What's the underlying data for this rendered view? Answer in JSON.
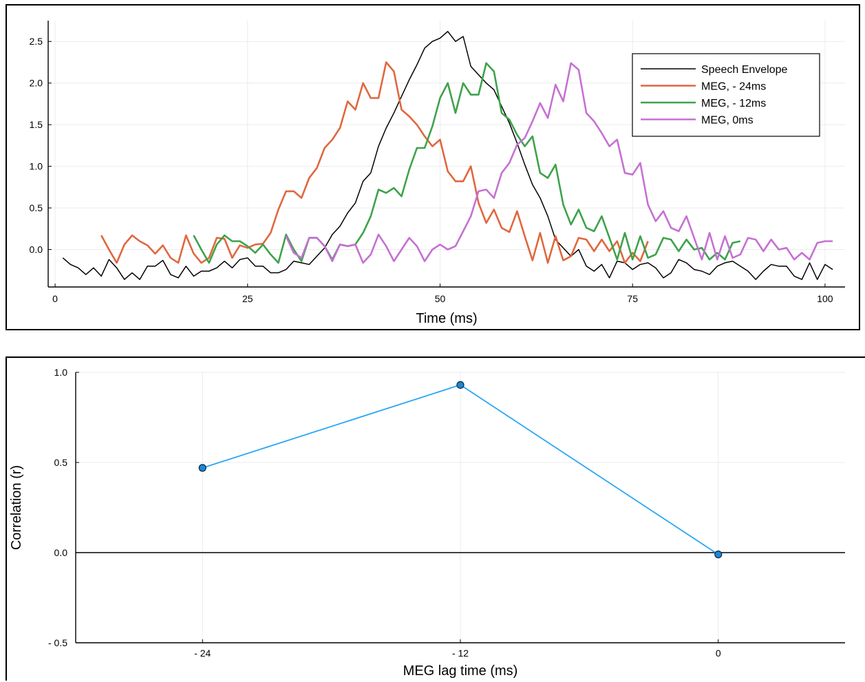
{
  "chart_data": [
    {
      "type": "line",
      "title": "",
      "xlabel": "Time (ms)",
      "ylabel": "",
      "xlim": [
        -0.9,
        102.6
      ],
      "ylim": [
        -0.45,
        2.75
      ],
      "xticks": [
        0,
        25,
        50,
        75,
        100
      ],
      "xtick_labels": [
        "0",
        "25",
        "50",
        "75",
        "100"
      ],
      "yticks": [
        0.0,
        0.5,
        1.0,
        1.5,
        2.0,
        2.5
      ],
      "ytick_labels": [
        "0.0",
        "0.5",
        "1.0",
        "1.5",
        "2.0",
        "2.5"
      ],
      "grid": true,
      "legend_position": "top-right",
      "series": [
        {
          "name": "Speech Envelope",
          "color": "#000000",
          "x": [
            1,
            2,
            3,
            4,
            5,
            6,
            7,
            8,
            9,
            10,
            11,
            12,
            13,
            14,
            15,
            16,
            17,
            18,
            19,
            20,
            21,
            22,
            23,
            24,
            25,
            26,
            27,
            28,
            29,
            30,
            31,
            32,
            33,
            34,
            35,
            36,
            37,
            38,
            39,
            40,
            41,
            42,
            43,
            44,
            45,
            46,
            47,
            48,
            49,
            50,
            51,
            52,
            53,
            54,
            55,
            56,
            57,
            58,
            59,
            60,
            61,
            62,
            63,
            64,
            65,
            66,
            67,
            68,
            69,
            70,
            71,
            72,
            73,
            74,
            75,
            76,
            77,
            78,
            79,
            80,
            81,
            82,
            83,
            84,
            85,
            86,
            87,
            88,
            89,
            90,
            91,
            92,
            93,
            94,
            95,
            96,
            97,
            98,
            99,
            100,
            101
          ],
          "y": [
            -0.1,
            -0.18,
            -0.22,
            -0.3,
            -0.22,
            -0.32,
            -0.12,
            -0.22,
            -0.36,
            -0.28,
            -0.36,
            -0.2,
            -0.2,
            -0.13,
            -0.3,
            -0.34,
            -0.2,
            -0.32,
            -0.26,
            -0.26,
            -0.22,
            -0.14,
            -0.22,
            -0.12,
            -0.1,
            -0.2,
            -0.2,
            -0.28,
            -0.28,
            -0.24,
            -0.14,
            -0.16,
            -0.18,
            -0.08,
            0.02,
            0.18,
            0.28,
            0.44,
            0.56,
            0.82,
            0.92,
            1.24,
            1.46,
            1.64,
            1.84,
            2.04,
            2.22,
            2.42,
            2.5,
            2.54,
            2.62,
            2.5,
            2.56,
            2.2,
            2.1,
            2.0,
            1.92,
            1.72,
            1.52,
            1.28,
            1.02,
            0.78,
            0.62,
            0.4,
            0.12,
            0.02,
            -0.08,
            0.0,
            -0.2,
            -0.26,
            -0.18,
            -0.34,
            -0.14,
            -0.16,
            -0.24,
            -0.18,
            -0.16,
            -0.22,
            -0.34,
            -0.28,
            -0.12,
            -0.16,
            -0.24,
            -0.26,
            -0.3,
            -0.2,
            -0.16,
            -0.14,
            -0.2,
            -0.26,
            -0.36,
            -0.26,
            -0.18,
            -0.2,
            -0.2,
            -0.32,
            -0.36,
            -0.16,
            -0.36,
            -0.18,
            -0.24
          ]
        },
        {
          "name": "MEG, - 24ms",
          "color": "#e0673f",
          "x": [
            6,
            7,
            8,
            9,
            10,
            11,
            12,
            13,
            14,
            15,
            16,
            17,
            18,
            19,
            20,
            21,
            22,
            23,
            24,
            25,
            26,
            27,
            28,
            29,
            30,
            31,
            32,
            33,
            34,
            35,
            36,
            37,
            38,
            39,
            40,
            41,
            42,
            43,
            44,
            45,
            46,
            47,
            48,
            49,
            50,
            51,
            52,
            53,
            54,
            55,
            56,
            57,
            58,
            59,
            60,
            61,
            62,
            63,
            64,
            65,
            66,
            67,
            68,
            69,
            70,
            71,
            72,
            73,
            74,
            75,
            76,
            77
          ],
          "y": [
            0.17,
            0.0,
            -0.16,
            0.06,
            0.17,
            0.1,
            0.05,
            -0.05,
            0.05,
            -0.1,
            -0.16,
            0.17,
            -0.05,
            -0.16,
            -0.1,
            0.14,
            0.13,
            -0.1,
            0.05,
            0.02,
            0.06,
            0.07,
            0.2,
            0.48,
            0.7,
            0.7,
            0.62,
            0.86,
            0.98,
            1.22,
            1.32,
            1.46,
            1.78,
            1.68,
            2.0,
            1.82,
            1.82,
            2.25,
            2.14,
            1.68,
            1.6,
            1.5,
            1.36,
            1.24,
            1.32,
            0.94,
            0.82,
            0.82,
            1.0,
            0.56,
            0.32,
            0.48,
            0.26,
            0.21,
            0.46,
            0.16,
            -0.13,
            0.2,
            -0.16,
            0.16,
            -0.13,
            -0.08,
            0.14,
            0.12,
            -0.02,
            0.12,
            -0.02,
            0.1,
            -0.16,
            -0.04,
            -0.14,
            0.1
          ]
        },
        {
          "name": "MEG, - 12ms",
          "color": "#3da24a",
          "x": [
            18,
            19,
            20,
            21,
            22,
            23,
            24,
            25,
            26,
            27,
            28,
            29,
            30,
            31,
            32,
            33,
            34,
            35,
            36,
            37,
            38,
            39,
            40,
            41,
            42,
            43,
            44,
            45,
            46,
            47,
            48,
            49,
            50,
            51,
            52,
            53,
            54,
            55,
            56,
            57,
            58,
            59,
            60,
            61,
            62,
            63,
            64,
            65,
            66,
            67,
            68,
            69,
            70,
            71,
            72,
            73,
            74,
            75,
            76,
            77,
            78,
            79,
            80,
            81,
            82,
            83,
            84,
            85,
            86,
            87,
            88,
            89
          ],
          "y": [
            0.17,
            0.0,
            -0.16,
            0.06,
            0.17,
            0.1,
            0.1,
            0.04,
            -0.04,
            0.06,
            -0.06,
            -0.16,
            0.18,
            0.0,
            -0.14,
            0.14,
            0.14,
            0.04,
            -0.12,
            0.06,
            0.04,
            0.06,
            0.2,
            0.4,
            0.72,
            0.68,
            0.74,
            0.64,
            0.96,
            1.22,
            1.22,
            1.48,
            1.82,
            2.0,
            1.64,
            2.0,
            1.86,
            1.86,
            2.24,
            2.14,
            1.64,
            1.56,
            1.38,
            1.24,
            1.36,
            0.92,
            0.86,
            1.02,
            0.54,
            0.3,
            0.48,
            0.26,
            0.22,
            0.4,
            0.14,
            -0.12,
            0.2,
            -0.12,
            0.16,
            -0.1,
            -0.06,
            0.14,
            0.12,
            -0.02,
            0.12,
            0.0,
            0.02,
            -0.12,
            -0.04,
            -0.12,
            0.08,
            0.1
          ]
        },
        {
          "name": "MEG, 0ms",
          "color": "#c670d3",
          "x": [
            30,
            31,
            32,
            33,
            34,
            35,
            36,
            37,
            38,
            39,
            40,
            41,
            42,
            43,
            44,
            45,
            46,
            47,
            48,
            49,
            50,
            51,
            52,
            53,
            54,
            55,
            56,
            57,
            58,
            59,
            60,
            61,
            62,
            63,
            64,
            65,
            66,
            67,
            68,
            69,
            70,
            71,
            72,
            73,
            74,
            75,
            76,
            77,
            78,
            79,
            80,
            81,
            82,
            83,
            84,
            85,
            86,
            87,
            88,
            89,
            90,
            91,
            92,
            93,
            94,
            95,
            96,
            97,
            98,
            99,
            100,
            101
          ],
          "y": [
            0.16,
            -0.04,
            -0.1,
            0.14,
            0.14,
            0.04,
            -0.14,
            0.06,
            0.04,
            0.06,
            -0.16,
            -0.06,
            0.18,
            0.04,
            -0.14,
            0.0,
            0.14,
            0.04,
            -0.14,
            0.0,
            0.06,
            0.0,
            0.04,
            0.22,
            0.4,
            0.7,
            0.72,
            0.62,
            0.92,
            1.04,
            1.26,
            1.34,
            1.54,
            1.76,
            1.58,
            1.98,
            1.78,
            2.24,
            2.16,
            1.64,
            1.54,
            1.4,
            1.24,
            1.32,
            0.92,
            0.9,
            1.04,
            0.54,
            0.34,
            0.46,
            0.26,
            0.22,
            0.4,
            0.14,
            -0.12,
            0.2,
            -0.12,
            0.16,
            -0.1,
            -0.06,
            0.14,
            0.12,
            -0.02,
            0.12,
            0.0,
            0.02,
            -0.12,
            -0.04,
            -0.12,
            0.08,
            0.1,
            0.1
          ]
        }
      ]
    },
    {
      "type": "line",
      "title": "",
      "xlabel": "MEG lag time (ms)",
      "ylabel": "Correlation (r)",
      "xlim": [
        -29.9,
        5.9
      ],
      "ylim": [
        -0.5,
        1.0
      ],
      "xticks": [
        -24,
        -12,
        0
      ],
      "xtick_labels": [
        "- 24",
        "- 12",
        "0"
      ],
      "yticks": [
        -0.5,
        0.0,
        0.5,
        1.0
      ],
      "ytick_labels": [
        "- 0.5",
        "0.0",
        "0.5",
        "1.0"
      ],
      "grid": true,
      "zero_line": true,
      "series": [
        {
          "color": "#2aa6f5",
          "marker_color": "#1a86d6",
          "x": [
            -24,
            -12,
            0
          ],
          "y": [
            0.47,
            0.93,
            -0.01
          ]
        }
      ]
    }
  ]
}
